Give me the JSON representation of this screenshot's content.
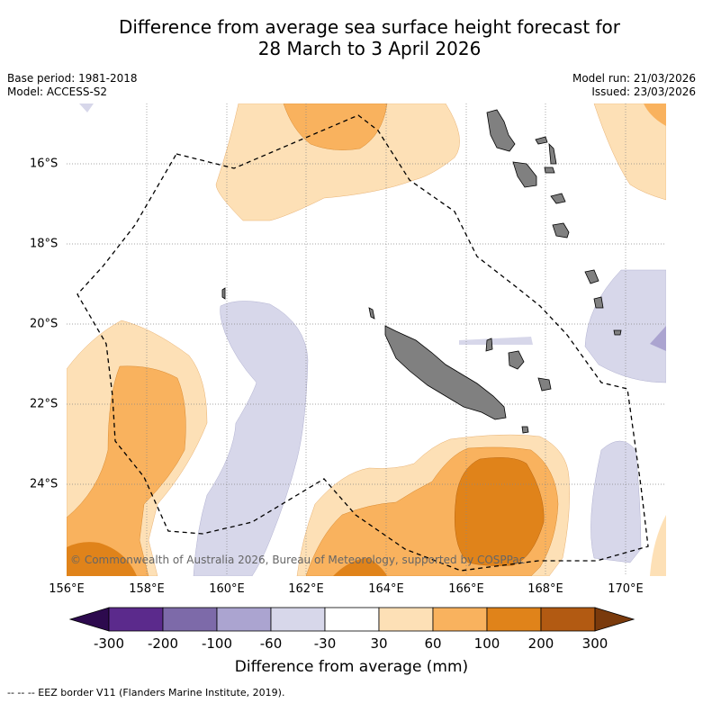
{
  "title_line1": "Difference from average sea surface height forecast for",
  "title_line2": "28 March to 3 April 2026",
  "base_period": "Base period: 1981-2018",
  "model": "Model: ACCESS-S2",
  "model_run": "Model run: 21/03/2026",
  "issued": "Issued: 23/03/2026",
  "copyright": "© Commonwealth of Australia 2026, Bureau of Meteorology, supported by COSPPac",
  "lon_labels": [
    "156°E",
    "158°E",
    "160°E",
    "162°E",
    "164°E",
    "166°E",
    "168°E",
    "170°E"
  ],
  "lat_labels": [
    "16°S",
    "18°S",
    "20°S",
    "22°S",
    "24°S"
  ],
  "colorbar": {
    "labels": [
      "-300",
      "-200",
      "-100",
      "-60",
      "-30",
      "30",
      "60",
      "100",
      "200",
      "300"
    ],
    "colors": {
      "below_-300": "#2d0a4e",
      "-300_-200": "#5b2a8c",
      "-200_-100": "#7d6aa9",
      "-100_-60": "#aba4d0",
      "-60_-30": "#d7d7ea",
      "-30_30": "#ffffff",
      "30_60": "#fde0b6",
      "60_100": "#f9b25e",
      "100_200": "#e0831a",
      "200_300": "#b25a12",
      "above_300": "#7a3a0c"
    },
    "title": "Difference from average (mm)"
  },
  "legend": "--  --  -- EEZ border V11 (Flanders Marine Institute, 2019).",
  "land_color": "#808080"
}
